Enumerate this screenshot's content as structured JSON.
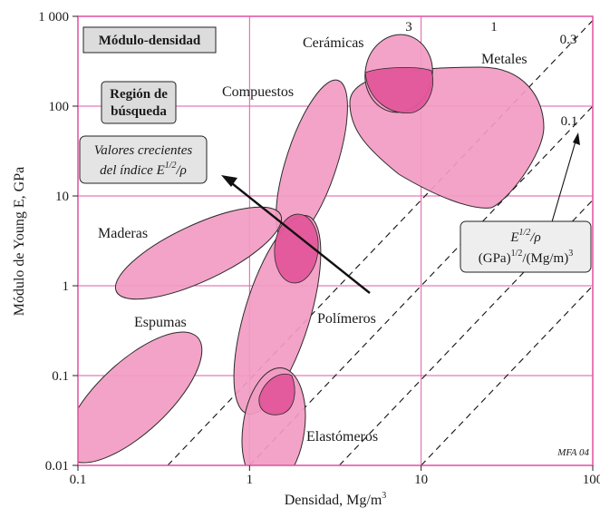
{
  "chart_data": {
    "type": "scatter",
    "title": "Módulo-densidad",
    "xlabel": "Densidad, Mg/m",
    "xlabel_sup": "3",
    "ylabel": "Módulo de Young E, GPa",
    "xscale": "log",
    "yscale": "log",
    "xlim": [
      0.1,
      100
    ],
    "ylim": [
      0.01,
      1000
    ],
    "x_ticks": [
      "0.1",
      "1",
      "10",
      "100"
    ],
    "y_ticks": [
      "0.01",
      "0.1",
      "1",
      "10",
      "100",
      "1 000"
    ],
    "grid": true,
    "colors": {
      "grid": "#e25aa6",
      "bubble_fill": "#f29bc2",
      "bubble_overlap": "#e2579a",
      "bubble_edge": "#2a2a2a",
      "box_fill": "#dcdcdc"
    },
    "families": [
      {
        "name": "Cerámicas",
        "center": [
          7.5,
          150
        ],
        "span_x": [
          4.2,
          15
        ],
        "span_y": [
          75,
          600
        ]
      },
      {
        "name": "Metales",
        "center": [
          12,
          60
        ],
        "span_x": [
          3.5,
          55
        ],
        "span_y": [
          7,
          260
        ]
      },
      {
        "name": "Compuestos",
        "center": [
          2.5,
          20
        ],
        "span_x": [
          1.3,
          4.5
        ],
        "span_y": [
          2,
          180
        ]
      },
      {
        "name": "Maderas",
        "center": [
          0.7,
          2.5
        ],
        "span_x": [
          0.12,
          3
        ],
        "span_y": [
          0.9,
          6.5
        ]
      },
      {
        "name": "Polímeros",
        "center": [
          1.4,
          1
        ],
        "span_x": [
          0.85,
          2.8
        ],
        "span_y": [
          0.035,
          7
        ]
      },
      {
        "name": "Espumas",
        "center": [
          0.2,
          0.05
        ],
        "span_x": [
          0.07,
          0.6
        ],
        "span_y": [
          0.005,
          0.28
        ]
      },
      {
        "name": "Elastómeros",
        "center": [
          1.6,
          0.02
        ],
        "span_x": [
          1.05,
          2.5
        ],
        "span_y": [
          0.005,
          0.12
        ]
      }
    ],
    "index_lines": [
      {
        "label": "3",
        "c": 0.3
      },
      {
        "label": "1",
        "c": 0.1
      },
      {
        "label": "0.3",
        "c": 0.03
      },
      {
        "label": "0.1",
        "c": 0.01
      }
    ],
    "annotations": {
      "search_region": [
        "Región de",
        "búsqueda"
      ],
      "increasing_index": {
        "line1": "Valores crecientes",
        "line2": "del índice E",
        "sup": "1/2",
        "tail": "/ρ"
      },
      "index_box": {
        "line1": "E",
        "line1_sup": "1/2",
        "line1_tail": "/ρ",
        "line2a": "(GPa)",
        "line2_sup1": "1/2",
        "line2b": "/(Mg/m)",
        "line2_sup2": "3"
      },
      "credit": "MFA 04"
    }
  }
}
